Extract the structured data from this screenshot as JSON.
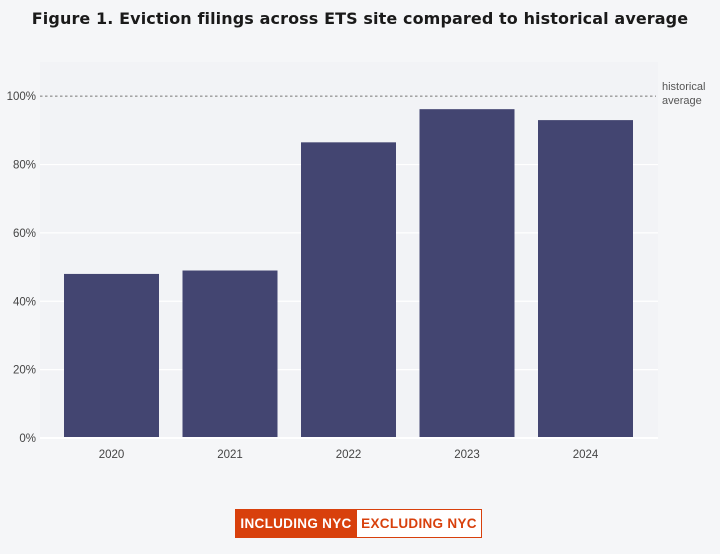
{
  "title": "Figure 1. Eviction filings across ETS site compared to historical average",
  "toggle": {
    "including_label": "INCLUDING NYC",
    "excluding_label": "EXCLUDING NYC",
    "selected": "including"
  },
  "colors": {
    "bar": "#434571",
    "plot_background": "#f2f3f6",
    "reference_line": "#999999",
    "accent": "#d8400c"
  },
  "chart_data": {
    "type": "bar",
    "title": "Figure 1. Eviction filings across ETS site compared to historical average",
    "categories": [
      "2020",
      "2021",
      "2022",
      "2023",
      "2024"
    ],
    "values": [
      0.48,
      0.49,
      0.865,
      0.962,
      0.93
    ],
    "ylim": [
      0,
      1.1
    ],
    "yticks": [
      0,
      0.2,
      0.4,
      0.6,
      0.8,
      1.0
    ],
    "ytick_labels": [
      "0%",
      "20%",
      "40%",
      "60%",
      "80%",
      "100%"
    ],
    "xlabel": "",
    "ylabel": "",
    "grid": true,
    "reference_line": {
      "value": 1.0,
      "label_line1": "historical",
      "label_line2": "average",
      "style": "dotted"
    }
  }
}
